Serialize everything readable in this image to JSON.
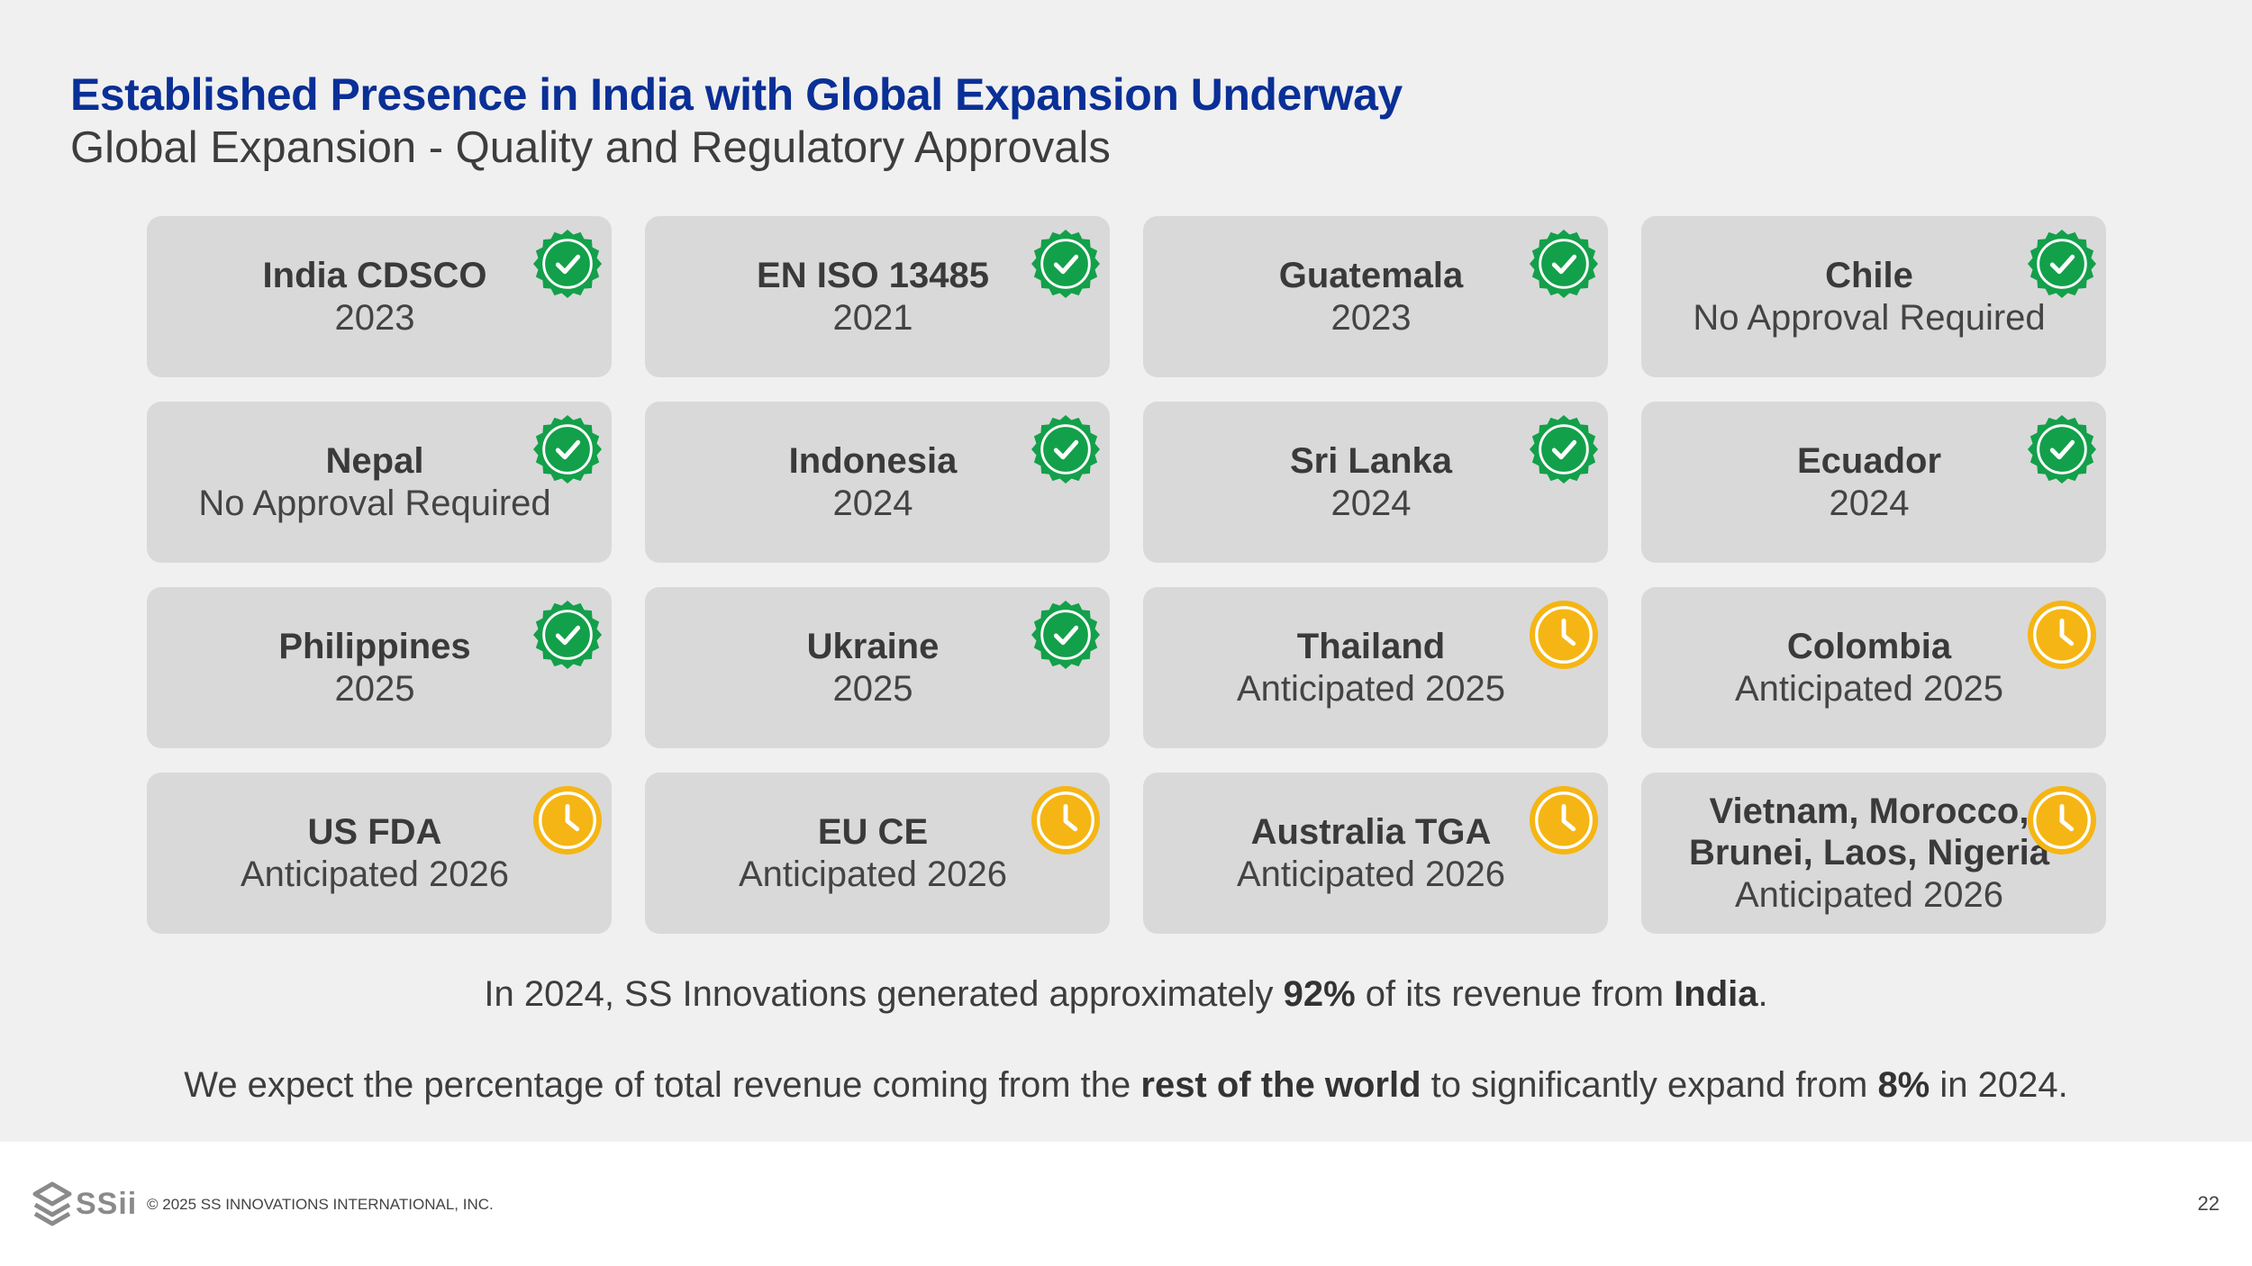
{
  "header": {
    "title": "Established Presence in India with Global Expansion Underway",
    "subtitle": "Global Expansion - Quality and Regulatory Approvals"
  },
  "colors": {
    "title_blue": "#0a2f96",
    "approved_green": "#13a04a",
    "pending_yellow": "#f5b514",
    "card_bg": "#d9d9d9"
  },
  "approvals": [
    {
      "name": "India CDSCO",
      "status": "2023",
      "icon": "approved-check-icon"
    },
    {
      "name": "EN ISO 13485",
      "status": "2021",
      "icon": "approved-check-icon"
    },
    {
      "name": "Guatemala",
      "status": "2023",
      "icon": "approved-check-icon"
    },
    {
      "name": "Chile",
      "status": "No Approval Required",
      "icon": "approved-check-icon"
    },
    {
      "name": "Nepal",
      "status": "No Approval Required",
      "icon": "approved-check-icon"
    },
    {
      "name": "Indonesia",
      "status": "2024",
      "icon": "approved-check-icon"
    },
    {
      "name": "Sri Lanka",
      "status": "2024",
      "icon": "approved-check-icon"
    },
    {
      "name": "Ecuador",
      "status": "2024",
      "icon": "approved-check-icon"
    },
    {
      "name": "Philippines",
      "status": "2025",
      "icon": "approved-check-icon"
    },
    {
      "name": "Ukraine",
      "status": "2025",
      "icon": "approved-check-icon"
    },
    {
      "name": "Thailand",
      "status": "Anticipated 2025",
      "icon": "pending-clock-icon"
    },
    {
      "name": "Colombia",
      "status": "Anticipated 2025",
      "icon": "pending-clock-icon"
    },
    {
      "name": "US FDA",
      "status": "Anticipated 2026",
      "icon": "pending-clock-icon"
    },
    {
      "name": "EU CE",
      "status": "Anticipated 2026",
      "icon": "pending-clock-icon"
    },
    {
      "name": "Australia TGA",
      "status": "Anticipated 2026",
      "icon": "pending-clock-icon"
    },
    {
      "name": "Vietnam, Morocco, Brunei, Laos, Nigeria",
      "status": "Anticipated 2026",
      "icon": "pending-clock-icon"
    }
  ],
  "notes": {
    "line1": {
      "pre": "In 2024, SS Innovations generated approximately ",
      "pct": "92%",
      "mid": " of its revenue from ",
      "country": "India",
      "post": "."
    },
    "line2": {
      "pre": "We expect the percentage of total revenue coming from the ",
      "emph": "rest of the world",
      "mid": " to significantly expand from ",
      "pct": "8%",
      "post": " in 2024."
    }
  },
  "footer": {
    "logo_text": "SSii",
    "copyright": "© 2025 SS INNOVATIONS INTERNATIONAL, INC.",
    "page_number": "22"
  }
}
